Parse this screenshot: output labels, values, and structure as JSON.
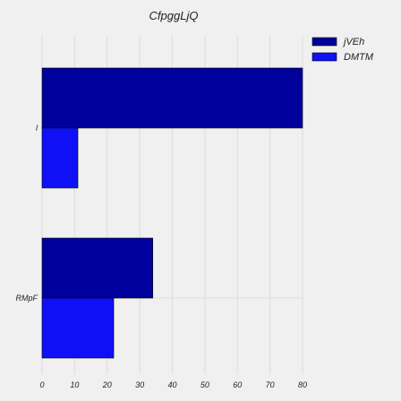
{
  "chart_data": {
    "type": "bar",
    "orientation": "horizontal",
    "title": "CfpggLjQ",
    "categories": [
      "l",
      "RMpF"
    ],
    "series": [
      {
        "name": "jVEh",
        "values": [
          80,
          34
        ],
        "color": "#00009c"
      },
      {
        "name": "DMTM",
        "values": [
          11,
          22
        ],
        "color": "#0f10f5"
      }
    ],
    "xlim": [
      0,
      80
    ],
    "xticks": [
      0,
      10,
      20,
      30,
      40,
      50,
      60,
      70,
      80
    ],
    "xlabel": "",
    "ylabel": "",
    "grid": true,
    "legend_position": "top-right",
    "background_color": "#f0f0f0",
    "grid_color": "#dcdcdc"
  }
}
